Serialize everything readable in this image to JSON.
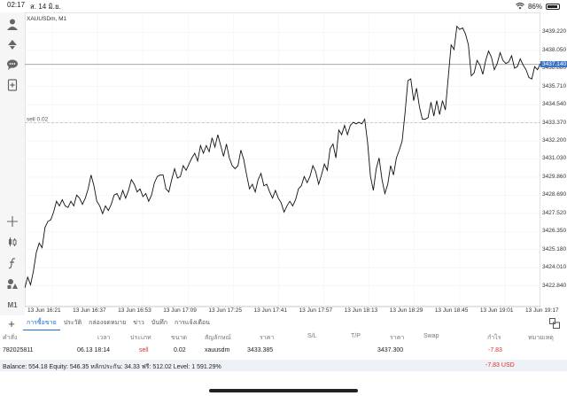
{
  "status_bar": {
    "time": "02:17",
    "date": "ส. 14 มิ.ย.",
    "battery": "86%"
  },
  "toolbar": {
    "timeframe": "M1"
  },
  "chart_data": {
    "type": "line",
    "title": "XAUUSDm, M1",
    "ylim": [
      3421.5,
      3440.5
    ],
    "y_ticks": [
      "3439.220",
      "3438.050",
      "3436.880",
      "3435.710",
      "3434.540",
      "3433.370",
      "3432.200",
      "3431.030",
      "3429.860",
      "3428.690",
      "3427.520",
      "3426.350",
      "3425.180",
      "3424.010",
      "3422.840"
    ],
    "y_tick_values": [
      3439.22,
      3438.05,
      3436.88,
      3435.71,
      3434.54,
      3433.37,
      3432.2,
      3431.03,
      3429.86,
      3428.69,
      3427.52,
      3426.35,
      3425.18,
      3424.01,
      3422.84
    ],
    "x_ticks": [
      "13 Jun 16:21",
      "13 Jun 16:37",
      "13 Jun 16:53",
      "13 Jun 17:09",
      "13 Jun 17:25",
      "13 Jun 17:41",
      "13 Jun 17:57",
      "13 Jun 18:13",
      "13 Jun 18:29",
      "13 Jun 18:45",
      "13 Jun 19:01",
      "13 Jun 19:17"
    ],
    "bid_line": {
      "value": 3437.14,
      "label": "3437.140"
    },
    "order_line": {
      "value": 3433.385,
      "label": "sell 0.02"
    },
    "values": [
      3422.7,
      3423.4,
      3422.9,
      3423.8,
      3425.0,
      3425.6,
      3425.3,
      3426.6,
      3427.0,
      3427.1,
      3427.6,
      3428.3,
      3428.0,
      3428.4,
      3428.0,
      3427.9,
      3428.3,
      3428.0,
      3428.7,
      3428.5,
      3428.1,
      3428.5,
      3429.1,
      3430.0,
      3429.3,
      3428.3,
      3428.0,
      3427.5,
      3428.0,
      3427.7,
      3428.1,
      3428.7,
      3428.8,
      3428.4,
      3429.0,
      3428.5,
      3429.0,
      3429.7,
      3429.4,
      3428.9,
      3429.1,
      3428.6,
      3428.8,
      3428.3,
      3428.7,
      3429.5,
      3429.9,
      3430.0,
      3430.0,
      3429.1,
      3428.9,
      3429.7,
      3430.4,
      3429.8,
      3429.9,
      3430.6,
      3430.3,
      3430.7,
      3431.1,
      3431.4,
      3430.9,
      3431.9,
      3431.4,
      3431.9,
      3431.5,
      3432.4,
      3431.8,
      3432.6,
      3431.9,
      3431.2,
      3432.0,
      3431.1,
      3430.6,
      3430.4,
      3430.6,
      3431.6,
      3431.0,
      3430.0,
      3429.1,
      3429.4,
      3428.9,
      3429.7,
      3430.1,
      3429.3,
      3429.4,
      3428.9,
      3428.5,
      3429.0,
      3428.5,
      3428.2,
      3427.6,
      3428.0,
      3428.3,
      3428.0,
      3428.4,
      3429.1,
      3429.3,
      3429.9,
      3429.5,
      3429.9,
      3430.6,
      3430.2,
      3429.4,
      3430.0,
      3430.7,
      3430.3,
      3431.7,
      3432.0,
      3431.1,
      3432.9,
      3432.6,
      3433.2,
      3432.6,
      3433.2,
      3433.4,
      3433.3,
      3433.4,
      3433.3,
      3433.6,
      3432.1,
      3429.9,
      3429.0,
      3430.4,
      3431.1,
      3429.7,
      3428.8,
      3429.4,
      3430.6,
      3430.0,
      3431.1,
      3431.6,
      3432.2,
      3434.0,
      3436.1,
      3436.2,
      3434.8,
      3435.6,
      3434.4,
      3433.6,
      3433.6,
      3433.7,
      3434.7,
      3433.8,
      3434.8,
      3433.9,
      3434.8,
      3434.2,
      3436.3,
      3438.4,
      3438.1,
      3439.6,
      3439.4,
      3439.5,
      3439.1,
      3438.4,
      3436.4,
      3436.6,
      3437.4,
      3437.1,
      3436.5,
      3437.4,
      3438.0,
      3437.6,
      3436.8,
      3437.2,
      3437.9,
      3437.4,
      3437.2,
      3437.3,
      3437.7,
      3436.9,
      3437.0,
      3437.5,
      3437.1,
      3436.8,
      3436.3,
      3436.2,
      3437.0,
      3436.8,
      3437.2
    ]
  },
  "tabs": [
    "การซื้อขาย",
    "ประวัติ",
    "กล่องจดหมาย",
    "ข่าว",
    "บันทึก",
    "การแจ้งเตือน"
  ],
  "table": {
    "headers": [
      "คำสั่ง",
      "เวลา",
      "ประเภท",
      "ขนาด",
      "สัญลักษณ์",
      "ราคา",
      "S/L",
      "T/P",
      "ราคา",
      "Swap",
      "กำไร",
      "หมายเหตุ"
    ],
    "row": {
      "ticket": "782025811",
      "time": "06.13 18:14",
      "type": "sell",
      "volume": "0.02",
      "symbol": "xauusdm",
      "open_price": "3433.385",
      "current_price": "3437.300",
      "profit": "-7.83"
    }
  },
  "balance": {
    "text": "Balance: 554.18 Equity: 546.35 หลักประกัน: 34.33 ฟรี: 512.02 Level: 1 591.29%",
    "profit": "-7.83  USD"
  },
  "colors": {
    "accent": "#1a6fd6",
    "loss": "#d9342b",
    "bid_bg": "#3b73c8"
  }
}
